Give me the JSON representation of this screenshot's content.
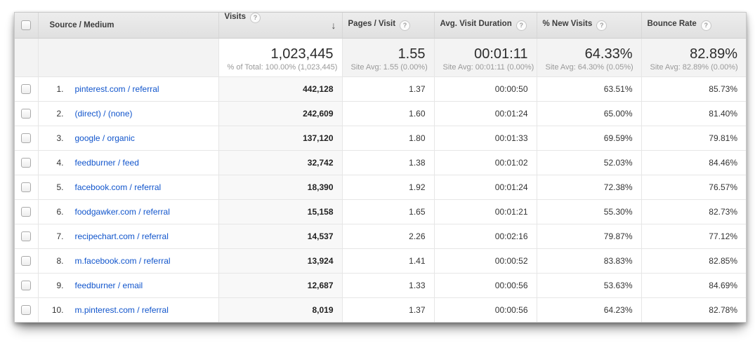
{
  "colors": {
    "link_blue": "#1155cc",
    "header_bg_top": "#ededed",
    "header_bg_bottom": "#e0e0e0",
    "summary_bg": "#f3f3f3",
    "sorted_col_bg": "#f8f8f8",
    "text_sub": "#999999"
  },
  "icons": {
    "help": "?",
    "sort_desc": "↓"
  },
  "table": {
    "columns": {
      "dimension": {
        "label": "Source / Medium"
      },
      "visits": {
        "label": "Visits"
      },
      "pages": {
        "label": "Pages / Visit"
      },
      "duration": {
        "label": "Avg. Visit Duration"
      },
      "new_visits": {
        "label": "% New Visits"
      },
      "bounce": {
        "label": "Bounce Rate"
      }
    },
    "summary": {
      "visits": "1,023,445",
      "visits_sub": "% of Total: 100.00% (1,023,445)",
      "pages": "1.55",
      "pages_sub": "Site Avg: 1.55 (0.00%)",
      "duration": "00:01:11",
      "duration_sub": "Site Avg: 00:01:11 (0.00%)",
      "new_visits": "64.33%",
      "new_visits_sub": "Site Avg: 64.30% (0.05%)",
      "bounce": "82.89%",
      "bounce_sub": "Site Avg: 82.89% (0.00%)"
    },
    "rows": [
      {
        "num": "1.",
        "source": "pinterest.com / referral",
        "visits": "442,128",
        "pages": "1.37",
        "duration": "00:00:50",
        "new_visits": "63.51%",
        "bounce": "85.73%"
      },
      {
        "num": "2.",
        "source": "(direct) / (none)",
        "visits": "242,609",
        "pages": "1.60",
        "duration": "00:01:24",
        "new_visits": "65.00%",
        "bounce": "81.40%"
      },
      {
        "num": "3.",
        "source": "google / organic",
        "visits": "137,120",
        "pages": "1.80",
        "duration": "00:01:33",
        "new_visits": "69.59%",
        "bounce": "79.81%"
      },
      {
        "num": "4.",
        "source": "feedburner / feed",
        "visits": "32,742",
        "pages": "1.38",
        "duration": "00:01:02",
        "new_visits": "52.03%",
        "bounce": "84.46%"
      },
      {
        "num": "5.",
        "source": "facebook.com / referral",
        "visits": "18,390",
        "pages": "1.92",
        "duration": "00:01:24",
        "new_visits": "72.38%",
        "bounce": "76.57%"
      },
      {
        "num": "6.",
        "source": "foodgawker.com / referral",
        "visits": "15,158",
        "pages": "1.65",
        "duration": "00:01:21",
        "new_visits": "55.30%",
        "bounce": "82.73%"
      },
      {
        "num": "7.",
        "source": "recipechart.com / referral",
        "visits": "14,537",
        "pages": "2.26",
        "duration": "00:02:16",
        "new_visits": "79.87%",
        "bounce": "77.12%"
      },
      {
        "num": "8.",
        "source": "m.facebook.com / referral",
        "visits": "13,924",
        "pages": "1.41",
        "duration": "00:00:52",
        "new_visits": "83.83%",
        "bounce": "82.85%"
      },
      {
        "num": "9.",
        "source": "feedburner / email",
        "visits": "12,687",
        "pages": "1.33",
        "duration": "00:00:56",
        "new_visits": "53.63%",
        "bounce": "84.69%"
      },
      {
        "num": "10.",
        "source": "m.pinterest.com / referral",
        "visits": "8,019",
        "pages": "1.37",
        "duration": "00:00:56",
        "new_visits": "64.23%",
        "bounce": "82.78%"
      }
    ]
  }
}
